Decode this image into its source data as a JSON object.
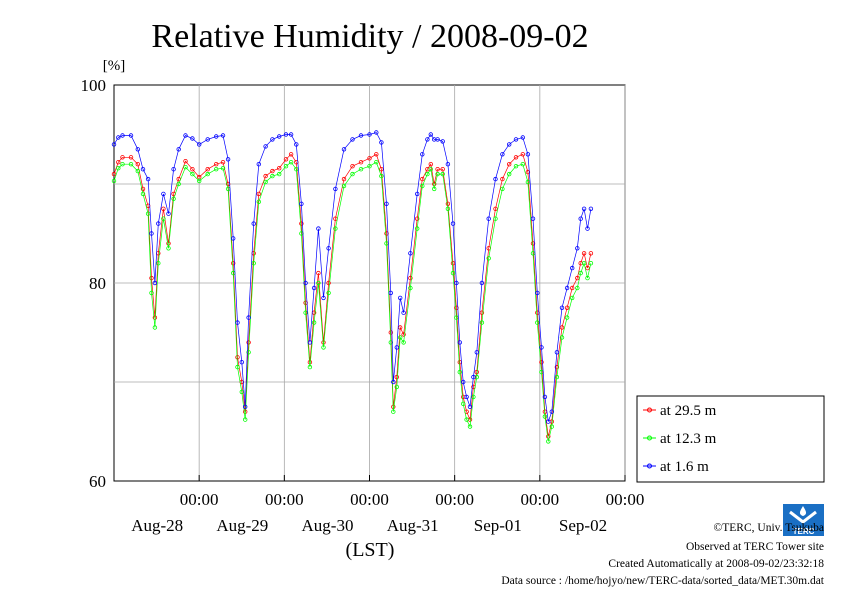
{
  "chart_data": {
    "type": "line",
    "title": "Relative Humidity / 2008-09-02",
    "ylabel": "[%]",
    "xlabel": "(LST)",
    "ylim": [
      60,
      100
    ],
    "xlim": [
      -1.0,
      5.0
    ],
    "x_unit": "days since 2008-08-28 00:00 LST",
    "yticks": [
      60,
      80,
      100
    ],
    "xtick_labels": [
      {
        "x": 0,
        "time": "00:00",
        "date": "Aug-28"
      },
      {
        "x": 1,
        "time": "00:00",
        "date": "Aug-29"
      },
      {
        "x": 2,
        "time": "00:00",
        "date": "Aug-30"
      },
      {
        "x": 3,
        "time": "00:00",
        "date": "Aug-31"
      },
      {
        "x": 4,
        "time": "00:00",
        "date": "Sep-01"
      },
      {
        "x": 5,
        "time": "00:00",
        "date": "Sep-02"
      }
    ],
    "grid": true,
    "legend_position": "bottom-right",
    "series": [
      {
        "name": "at 29.5 m",
        "color": "#ff0000",
        "points": [
          [
            -1.0,
            91.0
          ],
          [
            -0.95,
            92.2
          ],
          [
            -0.9,
            92.7
          ],
          [
            -0.8,
            92.7
          ],
          [
            -0.72,
            92.0
          ],
          [
            -0.66,
            89.5
          ],
          [
            -0.6,
            87.8
          ],
          [
            -0.56,
            80.5
          ],
          [
            -0.52,
            76.5
          ],
          [
            -0.48,
            83.0
          ],
          [
            -0.42,
            87.5
          ],
          [
            -0.36,
            84.0
          ],
          [
            -0.3,
            89.0
          ],
          [
            -0.24,
            90.5
          ],
          [
            -0.16,
            92.3
          ],
          [
            -0.08,
            91.5
          ],
          [
            0.0,
            90.7
          ],
          [
            0.1,
            91.5
          ],
          [
            0.2,
            92.0
          ],
          [
            0.28,
            92.2
          ],
          [
            0.34,
            90.0
          ],
          [
            0.4,
            82.0
          ],
          [
            0.45,
            72.5
          ],
          [
            0.5,
            70.0
          ],
          [
            0.54,
            67.0
          ],
          [
            0.58,
            74.0
          ],
          [
            0.64,
            83.0
          ],
          [
            0.7,
            89.0
          ],
          [
            0.78,
            90.8
          ],
          [
            0.86,
            91.3
          ],
          [
            0.94,
            91.6
          ],
          [
            1.02,
            92.5
          ],
          [
            1.08,
            93.0
          ],
          [
            1.14,
            92.2
          ],
          [
            1.2,
            86.0
          ],
          [
            1.25,
            78.0
          ],
          [
            1.3,
            72.0
          ],
          [
            1.35,
            77.0
          ],
          [
            1.4,
            81.0
          ],
          [
            1.46,
            74.0
          ],
          [
            1.52,
            80.0
          ],
          [
            1.6,
            86.5
          ],
          [
            1.7,
            90.5
          ],
          [
            1.8,
            91.8
          ],
          [
            1.9,
            92.2
          ],
          [
            2.0,
            92.6
          ],
          [
            2.08,
            93.0
          ],
          [
            2.14,
            91.5
          ],
          [
            2.2,
            85.0
          ],
          [
            2.25,
            75.0
          ],
          [
            2.28,
            67.5
          ],
          [
            2.32,
            70.5
          ],
          [
            2.36,
            75.5
          ],
          [
            2.4,
            74.8
          ],
          [
            2.48,
            80.5
          ],
          [
            2.56,
            86.5
          ],
          [
            2.62,
            90.5
          ],
          [
            2.68,
            91.5
          ],
          [
            2.72,
            92.0
          ],
          [
            2.76,
            90.0
          ],
          [
            2.8,
            91.5
          ],
          [
            2.86,
            91.5
          ],
          [
            2.92,
            88.0
          ],
          [
            2.98,
            82.0
          ],
          [
            3.02,
            77.5
          ],
          [
            3.06,
            72.0
          ],
          [
            3.1,
            68.5
          ],
          [
            3.14,
            67.0
          ],
          [
            3.18,
            66.2
          ],
          [
            3.22,
            69.5
          ],
          [
            3.26,
            71.0
          ],
          [
            3.32,
            77.0
          ],
          [
            3.4,
            83.5
          ],
          [
            3.48,
            87.5
          ],
          [
            3.56,
            90.5
          ],
          [
            3.64,
            92.0
          ],
          [
            3.72,
            92.7
          ],
          [
            3.8,
            93.0
          ],
          [
            3.86,
            91.2
          ],
          [
            3.92,
            84.0
          ],
          [
            3.97,
            77.0
          ],
          [
            4.02,
            72.0
          ],
          [
            4.06,
            67.0
          ],
          [
            4.1,
            64.5
          ],
          [
            4.14,
            66.0
          ],
          [
            4.2,
            71.5
          ],
          [
            4.26,
            75.5
          ],
          [
            4.32,
            77.5
          ],
          [
            4.38,
            79.5
          ],
          [
            4.44,
            80.5
          ],
          [
            4.48,
            82.0
          ],
          [
            4.52,
            83.0
          ],
          [
            4.56,
            81.5
          ],
          [
            4.6,
            83.0
          ]
        ]
      },
      {
        "name": "at 12.3 m",
        "color": "#00ff00",
        "points": [
          [
            -1.0,
            90.3
          ],
          [
            -0.95,
            91.6
          ],
          [
            -0.9,
            92.0
          ],
          [
            -0.8,
            92.0
          ],
          [
            -0.72,
            91.3
          ],
          [
            -0.66,
            89.0
          ],
          [
            -0.6,
            87.0
          ],
          [
            -0.56,
            79.0
          ],
          [
            -0.52,
            75.5
          ],
          [
            -0.48,
            82.0
          ],
          [
            -0.42,
            86.5
          ],
          [
            -0.36,
            83.5
          ],
          [
            -0.3,
            88.5
          ],
          [
            -0.24,
            90.0
          ],
          [
            -0.16,
            91.7
          ],
          [
            -0.08,
            91.0
          ],
          [
            0.0,
            90.3
          ],
          [
            0.1,
            91.0
          ],
          [
            0.2,
            91.5
          ],
          [
            0.28,
            91.6
          ],
          [
            0.34,
            89.5
          ],
          [
            0.4,
            81.0
          ],
          [
            0.45,
            71.5
          ],
          [
            0.5,
            69.0
          ],
          [
            0.54,
            66.2
          ],
          [
            0.58,
            73.0
          ],
          [
            0.64,
            82.0
          ],
          [
            0.7,
            88.2
          ],
          [
            0.78,
            90.2
          ],
          [
            0.86,
            90.8
          ],
          [
            0.94,
            91.0
          ],
          [
            1.02,
            91.8
          ],
          [
            1.08,
            92.2
          ],
          [
            1.14,
            91.5
          ],
          [
            1.2,
            85.0
          ],
          [
            1.25,
            77.0
          ],
          [
            1.3,
            71.5
          ],
          [
            1.35,
            76.0
          ],
          [
            1.4,
            80.0
          ],
          [
            1.46,
            73.5
          ],
          [
            1.52,
            79.0
          ],
          [
            1.6,
            85.5
          ],
          [
            1.7,
            89.8
          ],
          [
            1.8,
            91.0
          ],
          [
            1.9,
            91.5
          ],
          [
            2.0,
            91.8
          ],
          [
            2.08,
            92.2
          ],
          [
            2.14,
            90.8
          ],
          [
            2.2,
            84.0
          ],
          [
            2.25,
            74.0
          ],
          [
            2.28,
            67.0
          ],
          [
            2.32,
            69.5
          ],
          [
            2.36,
            74.5
          ],
          [
            2.4,
            74.0
          ],
          [
            2.48,
            79.5
          ],
          [
            2.56,
            85.5
          ],
          [
            2.62,
            89.8
          ],
          [
            2.68,
            91.0
          ],
          [
            2.72,
            91.5
          ],
          [
            2.76,
            89.5
          ],
          [
            2.8,
            91.0
          ],
          [
            2.86,
            91.0
          ],
          [
            2.92,
            87.5
          ],
          [
            2.98,
            81.0
          ],
          [
            3.02,
            76.5
          ],
          [
            3.06,
            71.0
          ],
          [
            3.1,
            67.8
          ],
          [
            3.14,
            66.2
          ],
          [
            3.18,
            65.5
          ],
          [
            3.22,
            68.5
          ],
          [
            3.26,
            70.5
          ],
          [
            3.32,
            76.0
          ],
          [
            3.4,
            82.5
          ],
          [
            3.48,
            86.5
          ],
          [
            3.56,
            89.5
          ],
          [
            3.64,
            91.0
          ],
          [
            3.72,
            91.8
          ],
          [
            3.8,
            92.0
          ],
          [
            3.86,
            90.2
          ],
          [
            3.92,
            83.0
          ],
          [
            3.97,
            76.0
          ],
          [
            4.02,
            71.0
          ],
          [
            4.06,
            66.5
          ],
          [
            4.1,
            64.0
          ],
          [
            4.14,
            65.5
          ],
          [
            4.2,
            70.5
          ],
          [
            4.26,
            74.5
          ],
          [
            4.32,
            76.5
          ],
          [
            4.38,
            78.5
          ],
          [
            4.44,
            79.5
          ],
          [
            4.48,
            81.0
          ],
          [
            4.52,
            82.0
          ],
          [
            4.56,
            80.5
          ],
          [
            4.6,
            82.0
          ]
        ]
      },
      {
        "name": "at 1.6 m",
        "color": "#0000ff",
        "points": [
          [
            -1.0,
            94.0
          ],
          [
            -0.95,
            94.7
          ],
          [
            -0.9,
            94.9
          ],
          [
            -0.8,
            94.9
          ],
          [
            -0.72,
            93.5
          ],
          [
            -0.66,
            91.5
          ],
          [
            -0.6,
            90.5
          ],
          [
            -0.56,
            85.0
          ],
          [
            -0.52,
            80.0
          ],
          [
            -0.48,
            86.0
          ],
          [
            -0.42,
            89.0
          ],
          [
            -0.36,
            87.0
          ],
          [
            -0.3,
            91.5
          ],
          [
            -0.24,
            93.5
          ],
          [
            -0.16,
            94.9
          ],
          [
            -0.08,
            94.6
          ],
          [
            0.0,
            94.0
          ],
          [
            0.1,
            94.5
          ],
          [
            0.2,
            94.8
          ],
          [
            0.28,
            94.9
          ],
          [
            0.34,
            92.5
          ],
          [
            0.4,
            84.5
          ],
          [
            0.45,
            76.0
          ],
          [
            0.5,
            72.0
          ],
          [
            0.54,
            67.5
          ],
          [
            0.58,
            76.5
          ],
          [
            0.64,
            86.0
          ],
          [
            0.7,
            92.0
          ],
          [
            0.78,
            93.8
          ],
          [
            0.86,
            94.5
          ],
          [
            0.94,
            94.8
          ],
          [
            1.02,
            95.0
          ],
          [
            1.08,
            95.0
          ],
          [
            1.14,
            94.0
          ],
          [
            1.2,
            88.0
          ],
          [
            1.25,
            80.0
          ],
          [
            1.3,
            74.0
          ],
          [
            1.35,
            79.5
          ],
          [
            1.4,
            85.5
          ],
          [
            1.46,
            78.5
          ],
          [
            1.52,
            83.5
          ],
          [
            1.6,
            89.5
          ],
          [
            1.7,
            93.5
          ],
          [
            1.8,
            94.5
          ],
          [
            1.9,
            94.9
          ],
          [
            2.0,
            95.0
          ],
          [
            2.08,
            95.2
          ],
          [
            2.14,
            94.2
          ],
          [
            2.2,
            88.0
          ],
          [
            2.25,
            79.0
          ],
          [
            2.28,
            70.0
          ],
          [
            2.32,
            73.5
          ],
          [
            2.36,
            78.5
          ],
          [
            2.4,
            77.0
          ],
          [
            2.48,
            83.0
          ],
          [
            2.56,
            89.0
          ],
          [
            2.62,
            93.0
          ],
          [
            2.68,
            94.5
          ],
          [
            2.72,
            95.0
          ],
          [
            2.76,
            94.5
          ],
          [
            2.8,
            94.5
          ],
          [
            2.86,
            94.3
          ],
          [
            2.92,
            92.0
          ],
          [
            2.98,
            86.0
          ],
          [
            3.02,
            80.0
          ],
          [
            3.06,
            74.0
          ],
          [
            3.1,
            70.0
          ],
          [
            3.14,
            68.5
          ],
          [
            3.18,
            67.5
          ],
          [
            3.22,
            70.5
          ],
          [
            3.26,
            73.0
          ],
          [
            3.32,
            80.0
          ],
          [
            3.4,
            86.5
          ],
          [
            3.48,
            90.5
          ],
          [
            3.56,
            93.0
          ],
          [
            3.64,
            94.0
          ],
          [
            3.72,
            94.5
          ],
          [
            3.8,
            94.7
          ],
          [
            3.86,
            93.0
          ],
          [
            3.92,
            86.5
          ],
          [
            3.97,
            79.0
          ],
          [
            4.02,
            73.5
          ],
          [
            4.06,
            68.5
          ],
          [
            4.1,
            66.0
          ],
          [
            4.14,
            67.0
          ],
          [
            4.2,
            73.0
          ],
          [
            4.26,
            77.5
          ],
          [
            4.32,
            79.5
          ],
          [
            4.38,
            81.5
          ],
          [
            4.44,
            83.5
          ],
          [
            4.48,
            86.5
          ],
          [
            4.52,
            87.5
          ],
          [
            4.56,
            85.5
          ],
          [
            4.6,
            87.5
          ]
        ]
      }
    ]
  },
  "legend": {
    "items": [
      "at 29.5 m",
      "at 12.3 m",
      "at 1.6 m"
    ]
  },
  "credits": {
    "line1": "©TERC, Univ. Tsukuba",
    "line2": "Observed at TERC Tower site",
    "line3": "Created Automatically at 2008-09-02/23:32:18",
    "line4": "Data source : /home/hojyo/new/TERC-data/sorted_data/MET.30m.dat"
  },
  "logo": {
    "text": "TERC"
  }
}
